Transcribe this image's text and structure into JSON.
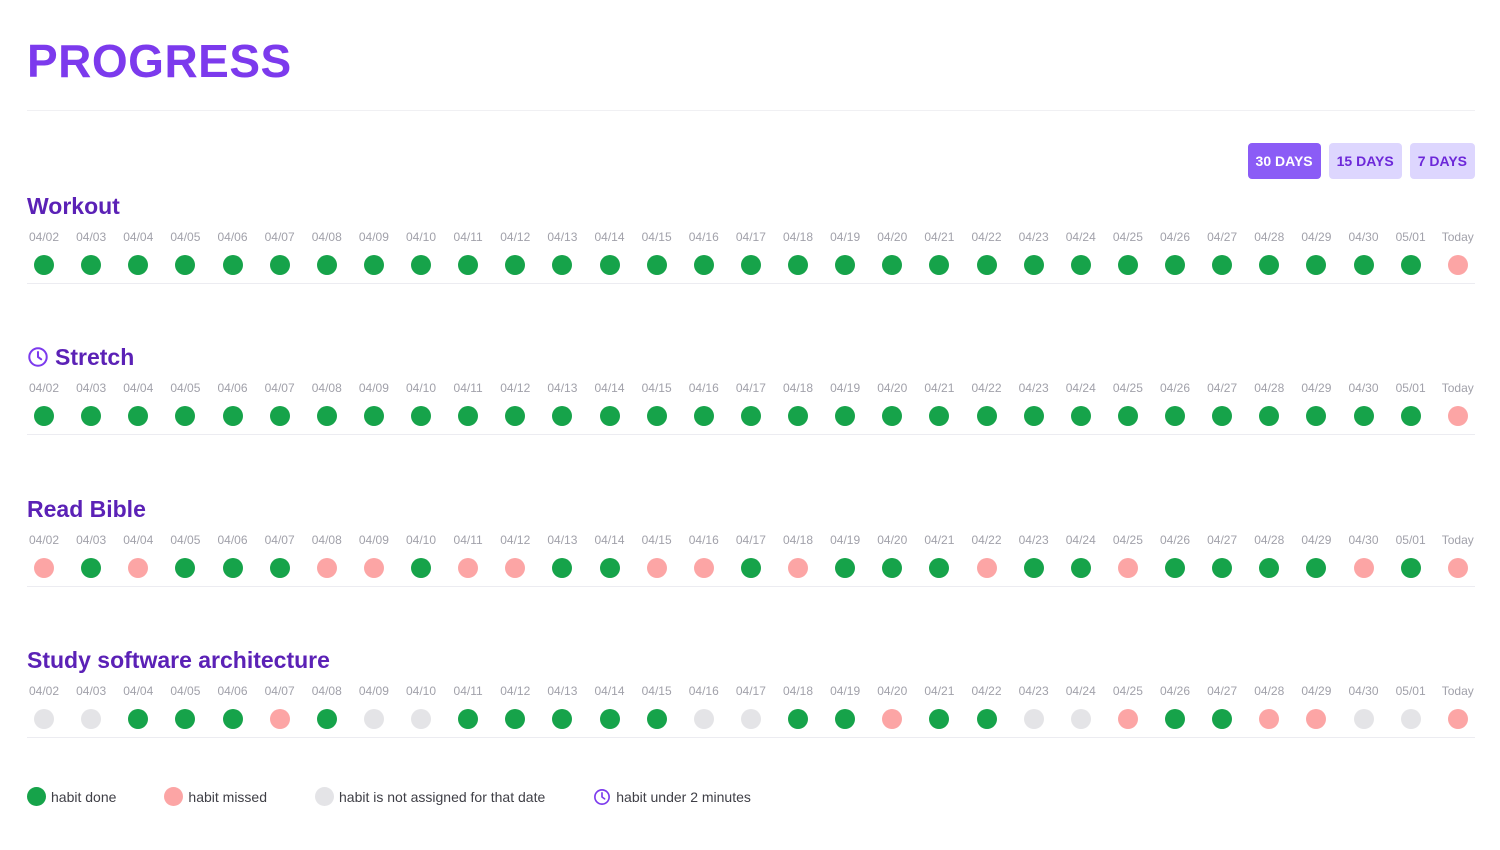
{
  "page": {
    "title": "PROGRESS"
  },
  "range_buttons": [
    {
      "label": "30 DAYS",
      "active": true
    },
    {
      "label": "15 DAYS",
      "active": false
    },
    {
      "label": "7 DAYS",
      "active": false
    }
  ],
  "dates": [
    "04/02",
    "04/03",
    "04/04",
    "04/05",
    "04/06",
    "04/07",
    "04/08",
    "04/09",
    "04/10",
    "04/11",
    "04/12",
    "04/13",
    "04/14",
    "04/15",
    "04/16",
    "04/17",
    "04/18",
    "04/19",
    "04/20",
    "04/21",
    "04/22",
    "04/23",
    "04/24",
    "04/25",
    "04/26",
    "04/27",
    "04/28",
    "04/29",
    "04/30",
    "05/01",
    "Today"
  ],
  "habits": [
    {
      "name": "Workout",
      "under_2_minutes": false,
      "statuses": [
        "done",
        "done",
        "done",
        "done",
        "done",
        "done",
        "done",
        "done",
        "done",
        "done",
        "done",
        "done",
        "done",
        "done",
        "done",
        "done",
        "done",
        "done",
        "done",
        "done",
        "done",
        "done",
        "done",
        "done",
        "done",
        "done",
        "done",
        "done",
        "done",
        "done",
        "missed"
      ]
    },
    {
      "name": "Stretch",
      "under_2_minutes": true,
      "statuses": [
        "done",
        "done",
        "done",
        "done",
        "done",
        "done",
        "done",
        "done",
        "done",
        "done",
        "done",
        "done",
        "done",
        "done",
        "done",
        "done",
        "done",
        "done",
        "done",
        "done",
        "done",
        "done",
        "done",
        "done",
        "done",
        "done",
        "done",
        "done",
        "done",
        "done",
        "missed"
      ]
    },
    {
      "name": "Read Bible",
      "under_2_minutes": false,
      "statuses": [
        "missed",
        "done",
        "missed",
        "done",
        "done",
        "done",
        "missed",
        "missed",
        "done",
        "missed",
        "missed",
        "done",
        "done",
        "missed",
        "missed",
        "done",
        "missed",
        "done",
        "done",
        "done",
        "missed",
        "done",
        "done",
        "missed",
        "done",
        "done",
        "done",
        "done",
        "missed",
        "done",
        "missed"
      ]
    },
    {
      "name": "Study software architecture",
      "under_2_minutes": false,
      "statuses": [
        "na",
        "na",
        "done",
        "done",
        "done",
        "missed",
        "done",
        "na",
        "na",
        "done",
        "done",
        "done",
        "done",
        "done",
        "na",
        "na",
        "done",
        "done",
        "missed",
        "done",
        "done",
        "na",
        "na",
        "missed",
        "done",
        "done",
        "missed",
        "missed",
        "na",
        "na",
        "missed"
      ]
    }
  ],
  "legend": [
    {
      "kind": "done",
      "label": "habit done"
    },
    {
      "kind": "missed",
      "label": "habit missed"
    },
    {
      "kind": "na",
      "label": "habit is not assigned for that date"
    },
    {
      "kind": "clock",
      "label": "habit under 2 minutes"
    }
  ],
  "colors": {
    "accent": "#7c3aed",
    "habit_title": "#5b21b6",
    "done": "#16a34a",
    "missed": "#fca5a5",
    "not_assigned": "#e4e4e7"
  },
  "icons": {
    "under_2_minutes": "clock-icon"
  }
}
